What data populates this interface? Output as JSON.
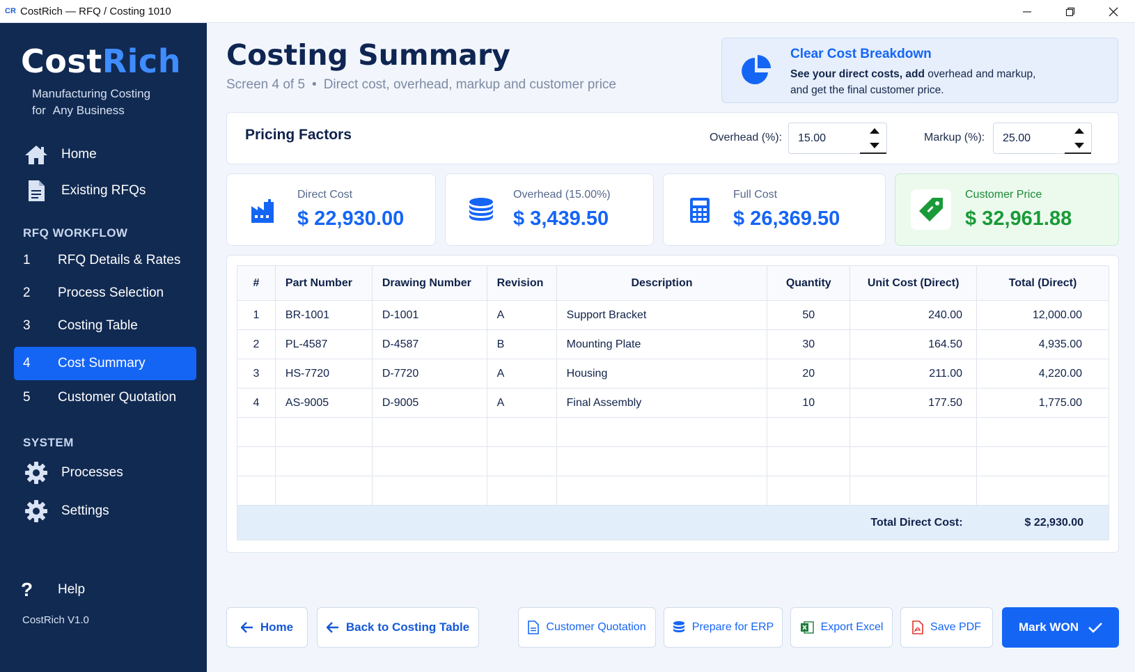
{
  "window": {
    "logo": "CR",
    "title": "CostRich — RFQ / Costing 1010"
  },
  "sidebar": {
    "brand_part1": "CostRich",
    "brand_part2": "Rich",
    "brand_prefix": "Cost",
    "tagline_line1": "Manufacturing Costing",
    "tagline_line2": "for   Any Business",
    "nav": [
      {
        "label": "Home",
        "icon": "home-icon"
      },
      {
        "label": "Existing RFQs",
        "icon": "document-icon"
      }
    ],
    "workflow_label": "RFQ WORKFLOW",
    "workflow": [
      {
        "num": "1",
        "label": "RFQ Details & Rates"
      },
      {
        "num": "2",
        "label": "Process Selection"
      },
      {
        "num": "3",
        "label": "Costing Table"
      },
      {
        "num": "4",
        "label": "Cost Summary"
      },
      {
        "num": "5",
        "label": "Customer Quotation"
      }
    ],
    "system_label": "SYSTEM",
    "system": [
      {
        "label": "Processes",
        "icon": "gear-icon"
      },
      {
        "label": "Settings",
        "icon": "gear-icon"
      }
    ],
    "help_label": "Help",
    "version": "CostRich   V1.0"
  },
  "header": {
    "title": "Costing Summary",
    "screen": "Screen 4 of 5",
    "separator": "•",
    "subtitle": "Direct cost, overhead, markup and customer price"
  },
  "info": {
    "title": "Clear Cost Breakdown",
    "line1_bold": "See your direct costs, add",
    "line1_rest": " overhead and markup,",
    "line2": "and get the final customer price."
  },
  "pricing": {
    "title": "Pricing Factors",
    "overhead_label": "Overhead (%):",
    "overhead_value": "15.00",
    "markup_label": "Markup (%):",
    "markup_value": "25.00"
  },
  "metrics": [
    {
      "label": "Direct Cost",
      "value": "$ 22,930.00"
    },
    {
      "label": "Overhead (15.00%)",
      "value": "$ 3,439.50"
    },
    {
      "label": "Full Cost",
      "value": "$ 26,369.50"
    },
    {
      "label": "Customer Price",
      "value": "$ 32,961.88"
    }
  ],
  "table": {
    "headers": [
      "#",
      "Part Number",
      "Drawing Number",
      "Revision",
      "Description",
      "Quantity",
      "Unit Cost (Direct)",
      "Total (Direct)"
    ],
    "rows": [
      [
        "1",
        "BR-1001",
        "D-1001",
        "A",
        "Support Bracket",
        "50",
        "240.00",
        "12,000.00"
      ],
      [
        "2",
        "PL-4587",
        "D-4587",
        "B",
        "Mounting Plate",
        "30",
        "164.50",
        "4,935.00"
      ],
      [
        "3",
        "HS-7720",
        "D-7720",
        "A",
        "Housing",
        "20",
        "211.00",
        "4,220.00"
      ],
      [
        "4",
        "AS-9005",
        "D-9005",
        "A",
        "Final Assembly",
        "10",
        "177.50",
        "1,775.00"
      ]
    ],
    "total_label": "Total Direct Cost:",
    "total_value": "$ 22,930.00"
  },
  "buttons": {
    "home": "Home",
    "back": "Back to Costing Table",
    "quotation": "Customer Quotation",
    "erp": "Prepare for ERP",
    "excel": "Export Excel",
    "pdf": "Save PDF",
    "won": "Mark WON"
  },
  "colors": {
    "accent": "#1565f5",
    "sidebar": "#112a52",
    "success": "#1a9a38"
  }
}
